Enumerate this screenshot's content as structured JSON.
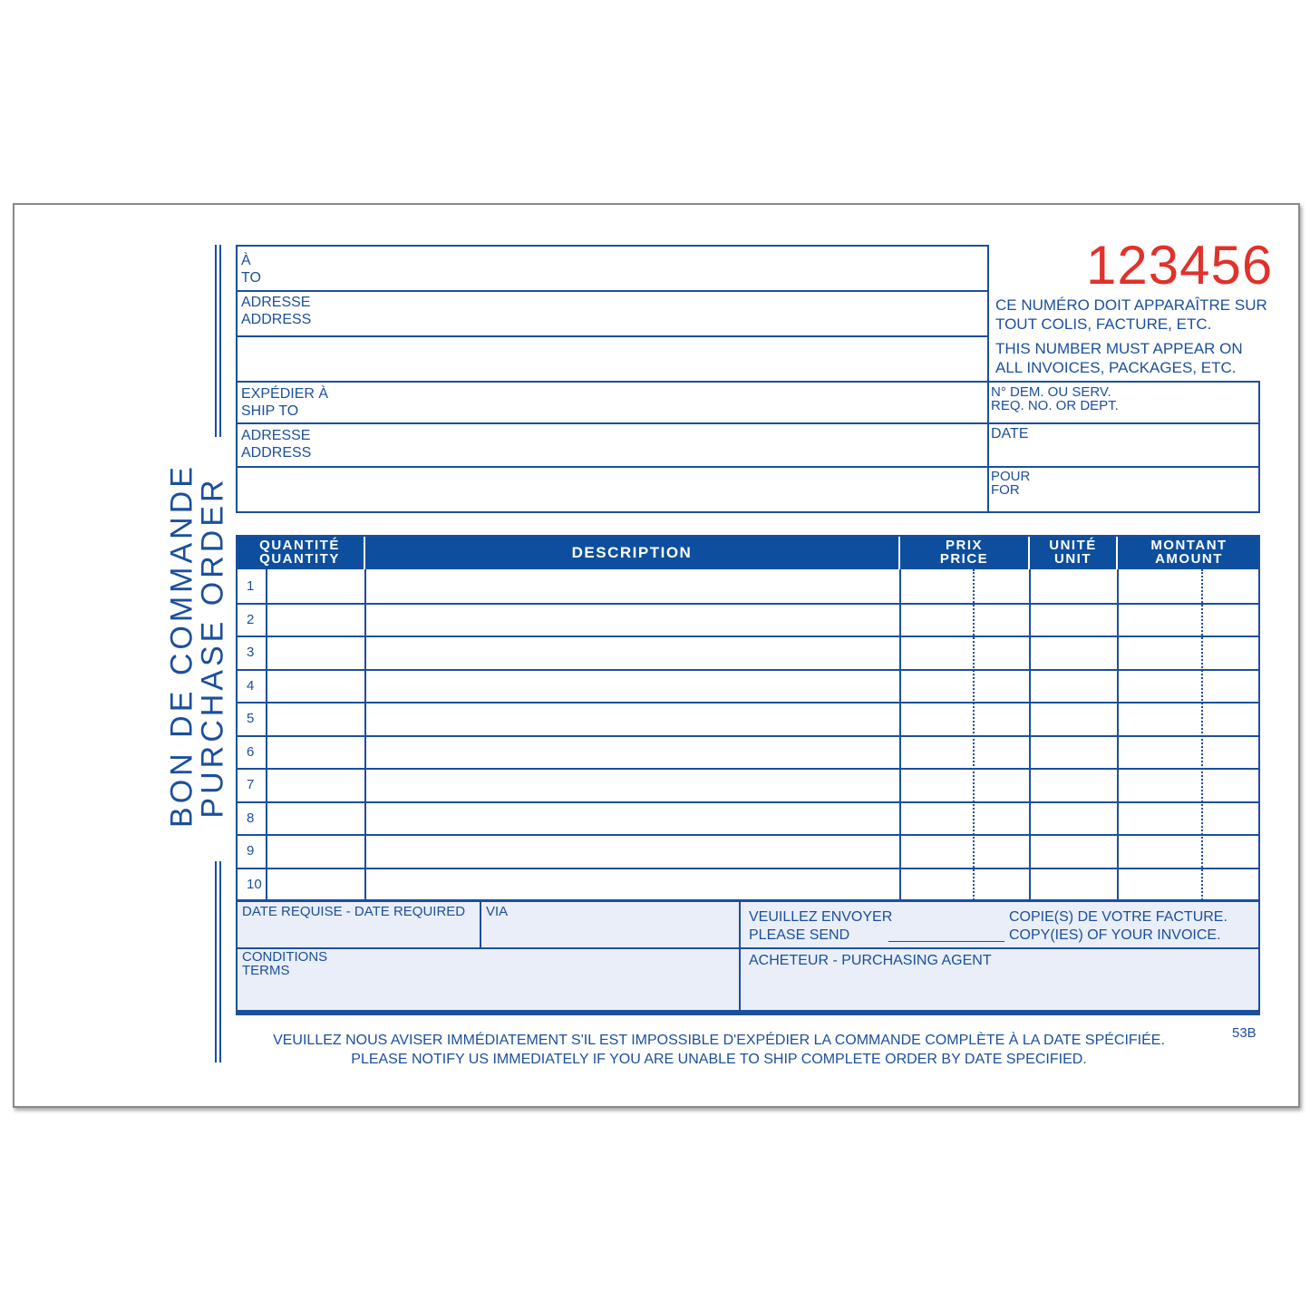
{
  "title": {
    "fr": "BON DE COMMANDE",
    "en": "PURCHASE ORDER"
  },
  "po_number": "123456",
  "po_number_color": "#e0322b",
  "accent_color": "#0d4f9e",
  "notice": {
    "fr_line1": "CE NUMÉRO DOIT APPARAÎTRE SUR",
    "fr_line2": "TOUT COLIS, FACTURE, ETC.",
    "en_line1": "THIS NUMBER MUST APPEAR ON",
    "en_line2": "ALL INVOICES, PACKAGES, ETC."
  },
  "fields": {
    "to_fr": "À",
    "to_en": "TO",
    "address1_fr": "ADRESSE",
    "address1_en": "ADDRESS",
    "ship_to_fr": "EXPÉDIER À",
    "ship_to_en": "SHIP TO",
    "address2_fr": "ADRESSE",
    "address2_en": "ADDRESS",
    "req_fr": "N° DEM. OU SERV.",
    "req_en": "REQ. NO. OR DEPT.",
    "date": "DATE",
    "for_fr": "POUR",
    "for_en": "FOR"
  },
  "table": {
    "headers": [
      {
        "fr": "QUANTITÉ",
        "en": "QUANTITY"
      },
      {
        "fr": "DESCRIPTION",
        "en": ""
      },
      {
        "fr": "PRIX",
        "en": "PRICE"
      },
      {
        "fr": "UNITÉ",
        "en": "UNIT"
      },
      {
        "fr": "MONTANT",
        "en": "AMOUNT"
      }
    ],
    "row_numbers": [
      "1",
      "2",
      "3",
      "4",
      "5",
      "6",
      "7",
      "8",
      "9",
      "10"
    ]
  },
  "bottom": {
    "date_required": "DATE REQUISE - DATE REQUIRED",
    "via": "VIA",
    "send_fr": "VEUILLEZ ENVOYER",
    "send_en": "PLEASE SEND",
    "copies_fr": "COPIE(S) DE VOTRE FACTURE.",
    "copies_en": "COPY(IES) OF YOUR INVOICE.",
    "terms_fr": "CONDITIONS",
    "terms_en": "TERMS",
    "agent": "ACHETEUR - PURCHASING AGENT"
  },
  "footer": {
    "fr": "VEUILLEZ NOUS AVISER IMMÉDIATEMENT S'IL EST IMPOSSIBLE D'EXPÉDIER LA COMMANDE COMPLÈTE À LA DATE SPÉCIFIÉE.",
    "en": "PLEASE NOTIFY US IMMEDIATELY IF YOU ARE UNABLE TO SHIP COMPLETE ORDER BY DATE SPECIFIED.",
    "form_code": "53B"
  }
}
